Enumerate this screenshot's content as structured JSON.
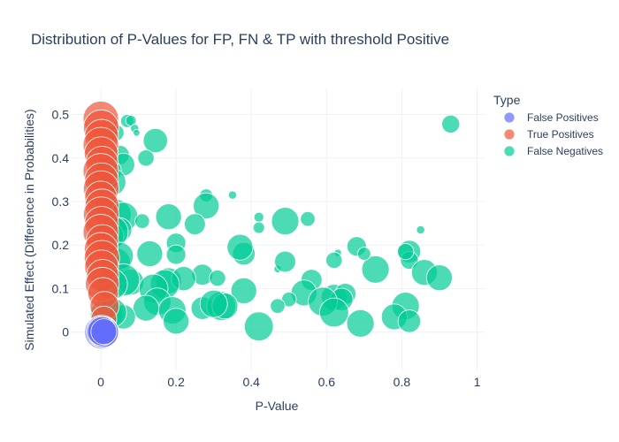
{
  "chart_data": {
    "type": "scatter",
    "title": "Distribution of P-Values for FP, FN & TP with threshold Positive",
    "xlabel": "P-Value",
    "ylabel": "Simulated Effect (Difference in Probabilities)",
    "xlim": [
      -0.08,
      1.02
    ],
    "ylim": [
      -0.09,
      0.56
    ],
    "xticks": [
      0,
      0.2,
      0.4,
      0.6,
      0.8,
      1
    ],
    "xtick_labels": [
      "0",
      "0.2",
      "0.4",
      "0.6",
      "0.8",
      "1"
    ],
    "yticks": [
      0,
      0.1,
      0.2,
      0.3,
      0.4,
      0.5
    ],
    "ytick_labels": [
      "0",
      "0.1",
      "0.2",
      "0.3",
      "0.4",
      "0.5"
    ],
    "grid": true,
    "legend_title": "Type",
    "legend_position": "right",
    "series": [
      {
        "name": "False Positives",
        "color": "#636efa",
        "x": [
          0.002,
          0.004,
          0.006,
          0.003,
          0.008
        ],
        "y": [
          0.0,
          0.001,
          0.0,
          0.002,
          0.001
        ],
        "size": [
          0.95,
          0.9,
          0.85,
          0.8,
          0.7
        ]
      },
      {
        "name": "True Positives",
        "color": "#ef553b",
        "x": [
          0.0,
          0.001,
          0.002,
          0.0,
          0.001,
          0.003,
          0.0,
          0.002,
          0.001,
          0.0,
          0.003,
          0.001,
          0.002,
          0.0,
          0.004,
          0.001,
          0.003,
          0.002,
          0.005,
          0.004,
          0.006,
          0.01,
          0.008
        ],
        "y": [
          0.49,
          0.47,
          0.45,
          0.43,
          0.41,
          0.39,
          0.37,
          0.35,
          0.33,
          0.31,
          0.29,
          0.27,
          0.25,
          0.23,
          0.21,
          0.19,
          0.17,
          0.15,
          0.13,
          0.11,
          0.09,
          0.06,
          0.03
        ],
        "size": [
          1.0,
          1.0,
          0.95,
          1.0,
          0.95,
          0.9,
          1.0,
          0.95,
          1.0,
          0.9,
          0.95,
          1.0,
          0.95,
          1.0,
          0.9,
          0.95,
          1.0,
          0.95,
          0.9,
          0.95,
          0.85,
          0.8,
          0.7
        ]
      },
      {
        "name": "False Negatives",
        "color": "#00cc96",
        "x": [
          0.93,
          0.07,
          0.08,
          0.09,
          0.095,
          0.04,
          0.145,
          0.05,
          0.06,
          0.12,
          0.28,
          0.35,
          0.01,
          0.02,
          0.03,
          0.28,
          0.25,
          0.015,
          0.04,
          0.06,
          0.18,
          0.42,
          0.42,
          0.49,
          0.55,
          0.2,
          0.11,
          0.05,
          0.63,
          0.85,
          0.82,
          0.82,
          0.38,
          0.37,
          0.47,
          0.2,
          0.13,
          0.49,
          0.62,
          0.02,
          0.03,
          0.04,
          0.05,
          0.86,
          0.9,
          0.73,
          0.56,
          0.27,
          0.31,
          0.18,
          0.22,
          0.17,
          0.08,
          0.06,
          0.03,
          0.015,
          0.38,
          0.62,
          0.65,
          0.54,
          0.64,
          0.14,
          0.5,
          0.59,
          0.81,
          0.47,
          0.27,
          0.32,
          0.33,
          0.15,
          0.12,
          0.3,
          0.06,
          0.03,
          0.19,
          0.2,
          0.62,
          0.78,
          0.82,
          0.42,
          0.69,
          0.68,
          0.81,
          0.7
        ],
        "y": [
          0.478,
          0.485,
          0.486,
          0.468,
          0.458,
          0.458,
          0.44,
          0.407,
          0.385,
          0.4,
          0.314,
          0.315,
          0.35,
          0.37,
          0.345,
          0.29,
          0.248,
          0.28,
          0.27,
          0.265,
          0.265,
          0.264,
          0.24,
          0.255,
          0.26,
          0.205,
          0.255,
          0.235,
          0.182,
          0.235,
          0.185,
          0.165,
          0.18,
          0.195,
          0.145,
          0.178,
          0.18,
          0.162,
          0.165,
          0.22,
          0.23,
          0.16,
          0.175,
          0.137,
          0.125,
          0.144,
          0.12,
          0.132,
          0.124,
          0.118,
          0.123,
          0.11,
          0.115,
          0.12,
          0.11,
          0.04,
          0.095,
          0.08,
          0.088,
          0.09,
          0.075,
          0.1,
          0.075,
          0.07,
          0.06,
          0.06,
          0.055,
          0.06,
          0.06,
          0.07,
          0.055,
          0.065,
          0.035,
          0.045,
          0.05,
          0.025,
          0.045,
          0.035,
          0.025,
          0.013,
          0.02,
          0.197,
          0.185,
          0.18
        ],
        "size": [
          0.45,
          0.3,
          0.22,
          0.15,
          0.1,
          0.4,
          0.65,
          0.5,
          0.6,
          0.4,
          0.3,
          0.15,
          0.8,
          0.7,
          0.75,
          0.7,
          0.55,
          0.75,
          0.85,
          0.8,
          0.7,
          0.2,
          0.25,
          0.75,
          0.35,
          0.5,
          0.35,
          0.65,
          0.12,
          0.15,
          0.6,
          0.45,
          0.6,
          0.7,
          0.12,
          0.5,
          0.7,
          0.55,
          0.4,
          0.85,
          0.9,
          0.8,
          0.75,
          0.7,
          0.7,
          0.75,
          0.55,
          0.55,
          0.4,
          0.7,
          0.65,
          0.8,
          0.7,
          0.9,
          0.85,
          0.9,
          0.7,
          0.7,
          0.55,
          0.7,
          0.6,
          0.8,
          0.35,
          0.8,
          0.75,
          0.35,
          0.6,
          0.8,
          0.7,
          0.75,
          0.7,
          0.75,
          0.65,
          0.8,
          0.75,
          0.7,
          0.8,
          0.7,
          0.6,
          0.8,
          0.75,
          0.5,
          0.4,
          0.3
        ]
      }
    ]
  }
}
